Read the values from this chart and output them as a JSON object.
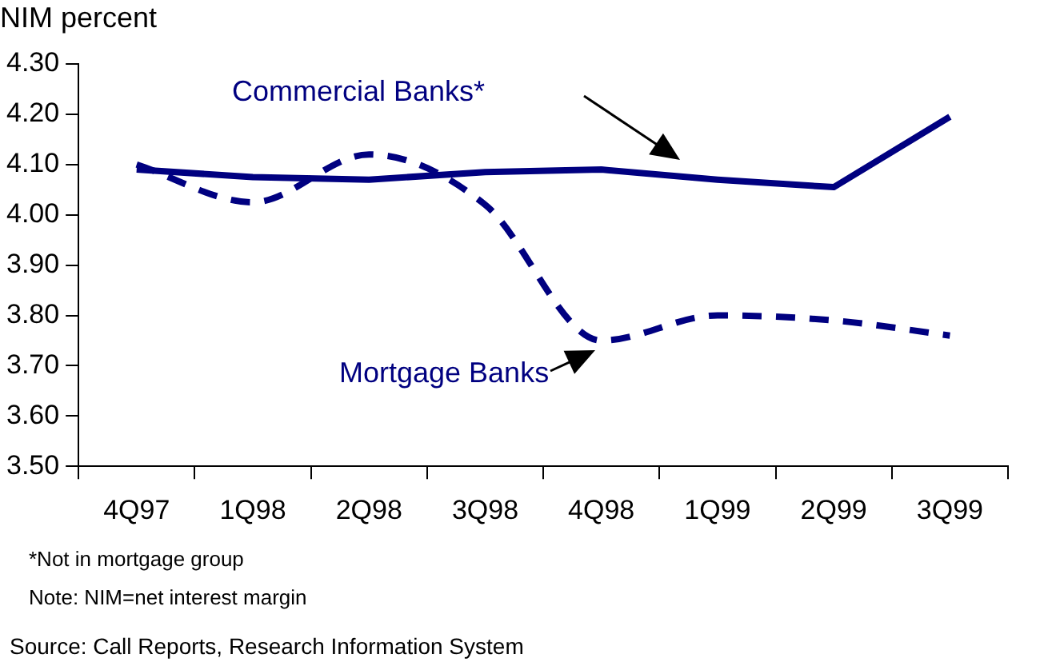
{
  "chart_data": {
    "type": "line",
    "ylabel": "NIM percent",
    "categories": [
      "4Q97",
      "1Q98",
      "2Q98",
      "3Q98",
      "4Q98",
      "1Q99",
      "2Q99",
      "3Q99"
    ],
    "series": [
      {
        "name": "Commercial Banks*",
        "color": "#000080",
        "line_style": "solid",
        "values": [
          4.09,
          4.075,
          4.07,
          4.085,
          4.09,
          4.07,
          4.055,
          4.195
        ]
      },
      {
        "name": "Mortgage Banks",
        "color": "#000080",
        "line_style": "dashed",
        "values": [
          4.1,
          4.025,
          4.12,
          4.02,
          3.75,
          3.8,
          3.79,
          3.76
        ]
      }
    ],
    "ylim": [
      3.5,
      4.3
    ],
    "yticks": [
      {
        "value": 3.5,
        "label": "3.50"
      },
      {
        "value": 3.6,
        "label": "3.60"
      },
      {
        "value": 3.7,
        "label": "3.70"
      },
      {
        "value": 3.8,
        "label": "3.80"
      },
      {
        "value": 3.9,
        "label": "3.90"
      },
      {
        "value": 4.0,
        "label": "4.00"
      },
      {
        "value": 4.1,
        "label": "4.10"
      },
      {
        "value": 4.2,
        "label": "4.20"
      },
      {
        "value": 4.3,
        "label": "4.30"
      }
    ],
    "grid": false,
    "legend": false,
    "marker": "none",
    "annotations": [
      "*Not in mortgage group",
      "Note: NIM=net interest margin",
      "Source:  Call Reports, Research Information System"
    ]
  }
}
